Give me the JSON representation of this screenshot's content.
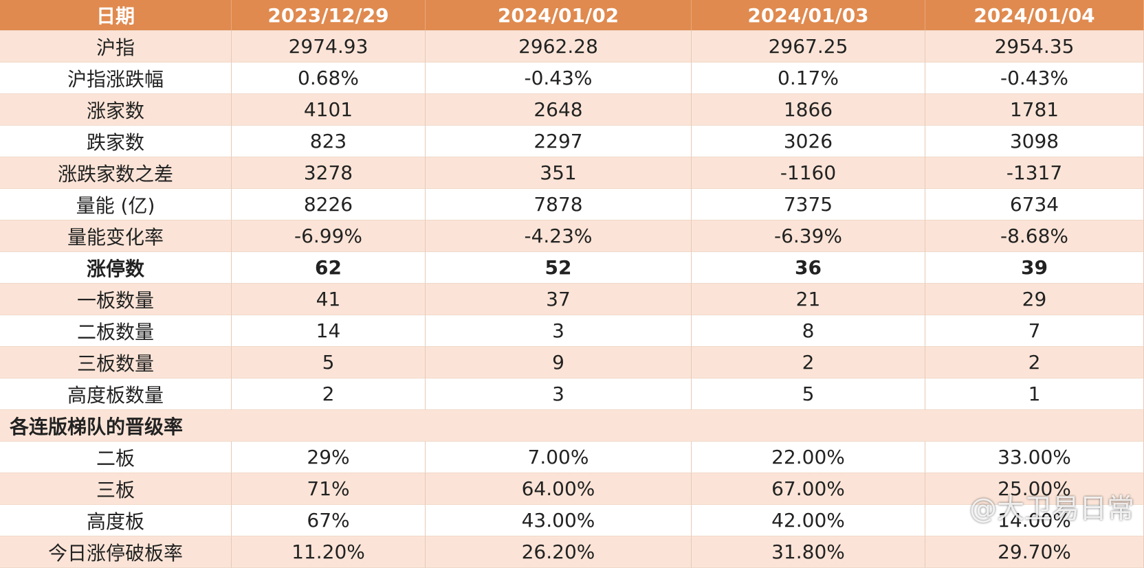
{
  "table": {
    "header": [
      "日期",
      "2023/12/29",
      "2024/01/02",
      "2024/01/03",
      "2024/01/04"
    ],
    "rows": [
      [
        "沪指",
        "2974.93",
        "2962.28",
        "2967.25",
        "2954.35"
      ],
      [
        "沪指涨跌幅",
        "0.68%",
        "-0.43%",
        "0.17%",
        "-0.43%"
      ],
      [
        "涨家数",
        "4101",
        "2648",
        "1866",
        "1781"
      ],
      [
        "跌家数",
        "823",
        "2297",
        "3026",
        "3098"
      ],
      [
        "涨跌家数之差",
        "3278",
        "351",
        "-1160",
        "-1317"
      ],
      [
        "量能 (亿)",
        "8226",
        "7878",
        "7375",
        "6734"
      ],
      [
        "量能变化率",
        "-6.99%",
        "-4.23%",
        "-6.39%",
        "-8.68%"
      ],
      [
        "涨停数",
        "62",
        "52",
        "36",
        "39"
      ],
      [
        "一板数量",
        "41",
        "37",
        "21",
        "29"
      ],
      [
        "二板数量",
        "14",
        "3",
        "8",
        "7"
      ],
      [
        "三板数量",
        "5",
        "9",
        "2",
        "2"
      ],
      [
        "高度板数量",
        "2",
        "3",
        "5",
        "1"
      ],
      [
        "各连版梯队的晋级率"
      ],
      [
        "二板",
        "29%",
        "7.00%",
        "22.00%",
        "33.00%"
      ],
      [
        "三板",
        "71%",
        "64.00%",
        "67.00%",
        "25.00%"
      ],
      [
        "高度板",
        "67%",
        "43.00%",
        "42.00%",
        "14.00%"
      ],
      [
        "今日涨停破板率",
        "11.20%",
        "26.20%",
        "31.80%",
        "29.70%"
      ]
    ]
  },
  "watermark": "@大卫易日常"
}
